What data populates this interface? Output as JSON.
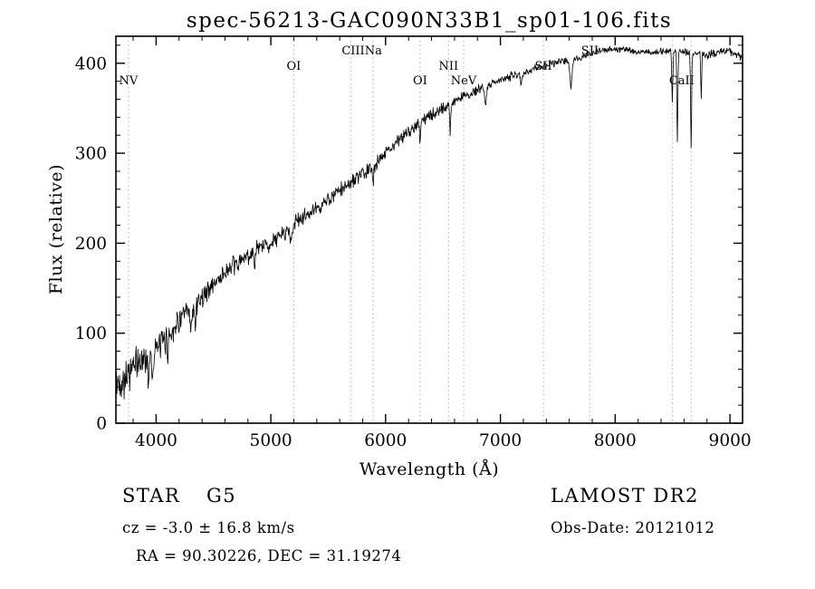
{
  "title": "spec-56213-GAC090N33B1_sp01-106.fits",
  "footer": {
    "obj_class": "STAR",
    "subclass": "G5",
    "survey": "LAMOST DR2",
    "cz_line": "cz = -3.0 ± 16.8 km/s",
    "obs_date": "Obs-Date: 20121012",
    "radec": "RA = 90.30226, DEC = 31.19274"
  },
  "chart_data": {
    "type": "line",
    "title": "spec-56213-GAC090N33B1_sp01-106.fits",
    "xlabel": "Wavelength (Å)",
    "ylabel": "Flux (relative)",
    "xlim": [
      3650,
      9110
    ],
    "ylim": [
      0,
      430
    ],
    "x_major_ticks": [
      4000,
      5000,
      6000,
      7000,
      8000,
      9000
    ],
    "y_major_ticks": [
      0,
      100,
      200,
      300,
      400
    ],
    "x_minor_step": 200,
    "y_minor_step": 20,
    "grid": false,
    "legend": "none",
    "line_color": "#000000",
    "marker_color": "#b3a8a8",
    "noise_seed": 42,
    "sample_step": 4,
    "continuum": [
      [
        3650,
        40
      ],
      [
        3700,
        48
      ],
      [
        3800,
        62
      ],
      [
        3900,
        72
      ],
      [
        4000,
        82
      ],
      [
        4100,
        95
      ],
      [
        4200,
        115
      ],
      [
        4300,
        125
      ],
      [
        4400,
        140
      ],
      [
        4500,
        155
      ],
      [
        4600,
        167
      ],
      [
        4700,
        176
      ],
      [
        4800,
        186
      ],
      [
        4900,
        195
      ],
      [
        5000,
        200
      ],
      [
        5100,
        210
      ],
      [
        5200,
        222
      ],
      [
        5300,
        230
      ],
      [
        5400,
        238
      ],
      [
        5500,
        248
      ],
      [
        5600,
        258
      ],
      [
        5700,
        268
      ],
      [
        5800,
        276
      ],
      [
        5900,
        286
      ],
      [
        6000,
        302
      ],
      [
        6100,
        312
      ],
      [
        6200,
        325
      ],
      [
        6300,
        335
      ],
      [
        6400,
        342
      ],
      [
        6500,
        350
      ],
      [
        6600,
        358
      ],
      [
        6700,
        364
      ],
      [
        6800,
        370
      ],
      [
        6900,
        376
      ],
      [
        7000,
        381
      ],
      [
        7100,
        386
      ],
      [
        7200,
        390
      ],
      [
        7300,
        394
      ],
      [
        7400,
        398
      ],
      [
        7500,
        402
      ],
      [
        7600,
        403
      ],
      [
        7700,
        407
      ],
      [
        7800,
        411
      ],
      [
        7900,
        414
      ],
      [
        8000,
        416
      ],
      [
        8100,
        415
      ],
      [
        8200,
        413
      ],
      [
        8300,
        412
      ],
      [
        8400,
        413
      ],
      [
        8500,
        414
      ],
      [
        8600,
        413
      ],
      [
        8700,
        411
      ],
      [
        8800,
        409
      ],
      [
        8900,
        412
      ],
      [
        9000,
        414
      ],
      [
        9110,
        406
      ]
    ],
    "absorption_features": [
      {
        "center": 3934,
        "depth": 28,
        "sigma": 6
      },
      {
        "center": 3969,
        "depth": 25,
        "sigma": 6
      },
      {
        "center": 4102,
        "depth": 15,
        "sigma": 6
      },
      {
        "center": 4305,
        "depth": 22,
        "sigma": 9
      },
      {
        "center": 4340,
        "depth": 18,
        "sigma": 6
      },
      {
        "center": 4861,
        "depth": 20,
        "sigma": 6
      },
      {
        "center": 5175,
        "depth": 18,
        "sigma": 8
      },
      {
        "center": 5890,
        "depth": 22,
        "sigma": 5
      },
      {
        "center": 6300,
        "depth": 28,
        "sigma": 4
      },
      {
        "center": 6563,
        "depth": 30,
        "sigma": 5
      },
      {
        "center": 6870,
        "depth": 18,
        "sigma": 8
      },
      {
        "center": 7180,
        "depth": 12,
        "sigma": 8
      },
      {
        "center": 7615,
        "depth": 30,
        "sigma": 10
      },
      {
        "center": 8498,
        "depth": 55,
        "sigma": 5
      },
      {
        "center": 8542,
        "depth": 100,
        "sigma": 4.5
      },
      {
        "center": 8662,
        "depth": 105,
        "sigma": 4.5
      },
      {
        "center": 8750,
        "depth": 45,
        "sigma": 4
      }
    ],
    "noise_profile": [
      [
        3650,
        30
      ],
      [
        3750,
        26
      ],
      [
        3900,
        22
      ],
      [
        4100,
        18
      ],
      [
        4400,
        15
      ],
      [
        4800,
        13
      ],
      [
        5200,
        11
      ],
      [
        5600,
        10
      ],
      [
        6000,
        9
      ],
      [
        6500,
        8
      ],
      [
        7000,
        6
      ],
      [
        7500,
        5
      ],
      [
        8000,
        4.5
      ],
      [
        8600,
        5
      ],
      [
        9110,
        6
      ]
    ],
    "line_markers": [
      {
        "label": "NV",
        "wavelengths": [
          3760
        ],
        "row": 2
      },
      {
        "label": "OI",
        "wavelengths": [
          5200
        ],
        "row": 1
      },
      {
        "label": "CIIINa",
        "wavelengths": [
          5696,
          5890
        ],
        "row": 0
      },
      {
        "label": "OI",
        "wavelengths": [
          6300
        ],
        "row": 2
      },
      {
        "label": "NII",
        "wavelengths": [
          6548
        ],
        "row": 1
      },
      {
        "label": "NeV",
        "wavelengths": [
          6680
        ],
        "row": 2
      },
      {
        "label": "SII",
        "wavelengths": [
          7375
        ],
        "row": 1
      },
      {
        "label": "SII",
        "wavelengths": [
          7780
        ],
        "row": 0
      },
      {
        "label": "CaII",
        "wavelengths": [
          8498,
          8662
        ],
        "row": 2
      }
    ]
  }
}
